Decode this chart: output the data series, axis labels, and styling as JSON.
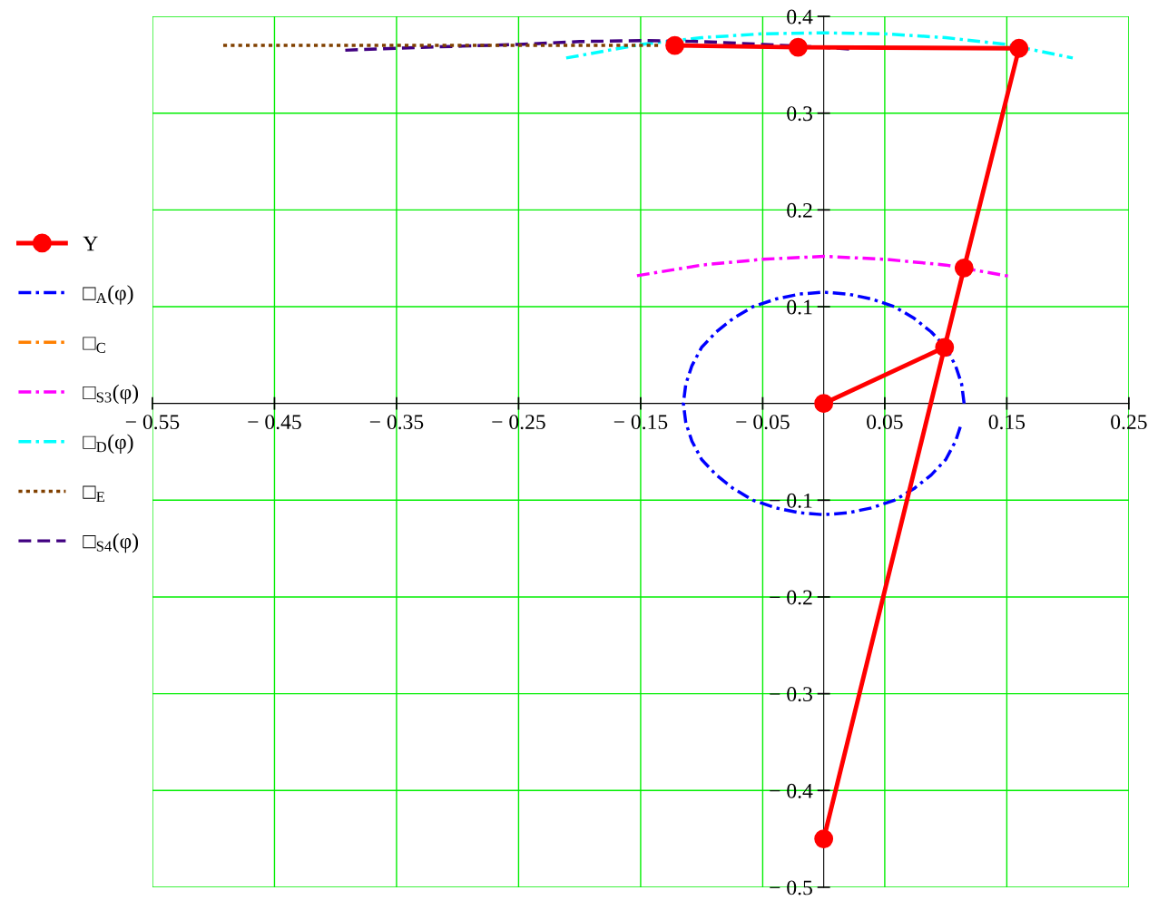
{
  "chart_data": {
    "type": "line",
    "xlim": [
      -0.55,
      0.25
    ],
    "ylim": [
      -0.5,
      0.4
    ],
    "xticks": [
      {
        "value": -0.55,
        "label": "− 0.55"
      },
      {
        "value": -0.45,
        "label": "− 0.45"
      },
      {
        "value": -0.35,
        "label": "− 0.35"
      },
      {
        "value": -0.25,
        "label": "− 0.25"
      },
      {
        "value": -0.15,
        "label": "− 0.15"
      },
      {
        "value": -0.05,
        "label": "− 0.05"
      },
      0.05,
      0.15,
      0.25
    ],
    "yticks": [
      {
        "value": -0.5,
        "label": "− 0.5"
      },
      {
        "value": -0.4,
        "label": "− 0.4"
      },
      {
        "value": -0.3,
        "label": "− 0.3"
      },
      {
        "value": -0.2,
        "label": "− 0.2"
      },
      {
        "value": -0.1,
        "label": "− 0.1"
      },
      0.1,
      0.2,
      0.3,
      0.4
    ],
    "grid": true,
    "legend": "left",
    "series": [
      {
        "name": "Y",
        "color": "#ff0000",
        "marker": "circle",
        "line_style": "solid",
        "x": [
          0,
          0.099,
          0,
          0.115,
          0.16,
          -0.021,
          -0.122
        ],
        "values": [
          0,
          0.058,
          -0.45,
          0.14,
          0.367,
          0.368,
          0.37
        ]
      },
      {
        "name": "□$_{A}$(φ)",
        "color": "#0000ff",
        "marker": "none",
        "line_style": "dashdot",
        "x": [
          0.115,
          0.113,
          0.108,
          0.1,
          0.088,
          0.074,
          0.058,
          0.039,
          0.02,
          0,
          -0.02,
          -0.039,
          -0.058,
          -0.074,
          -0.088,
          -0.1,
          -0.108,
          -0.113,
          -0.115,
          -0.113,
          -0.108,
          -0.1,
          -0.088,
          -0.074,
          -0.058,
          -0.039,
          -0.02,
          0,
          0.02,
          0.039,
          0.058,
          0.074,
          0.088,
          0.1,
          0.108,
          0.113
        ],
        "values": [
          0,
          0.02,
          0.039,
          0.058,
          0.074,
          0.088,
          0.1,
          0.108,
          0.113,
          0.115,
          0.113,
          0.108,
          0.1,
          0.088,
          0.074,
          0.058,
          0.039,
          0.02,
          0,
          -0.02,
          -0.039,
          -0.058,
          -0.074,
          -0.088,
          -0.1,
          -0.108,
          -0.113,
          -0.115,
          -0.113,
          -0.108,
          -0.1,
          -0.088,
          -0.074,
          -0.058,
          -0.039,
          -0.02
        ]
      },
      {
        "name": "□$_{C}$",
        "color": "#ff8000",
        "marker": "none",
        "line_style": "dashdot"
      },
      {
        "name": "□$_{S3}$(φ)",
        "color": "#ff00ff",
        "marker": "none",
        "line_style": "dashdot",
        "x": [
          -0.153,
          -0.1,
          -0.05,
          0,
          0.05,
          0.1,
          0.154
        ],
        "values": [
          0.132,
          0.143,
          0.149,
          0.152,
          0.149,
          0.143,
          0.131
        ]
      },
      {
        "name": "□$_{D}$(φ)",
        "color": "#00ffff",
        "marker": "none",
        "line_style": "dashdot",
        "x": [
          -0.211,
          -0.15,
          -0.1,
          -0.05,
          0,
          0.05,
          0.1,
          0.15,
          0.204
        ],
        "values": [
          0.357,
          0.371,
          0.378,
          0.382,
          0.383,
          0.382,
          0.378,
          0.371,
          0.357
        ]
      },
      {
        "name": "□$_{E}$",
        "color": "#804000",
        "marker": "none",
        "line_style": "dotted",
        "x": [
          -0.492,
          -0.3,
          -0.135
        ],
        "values": [
          0.37,
          0.37,
          0.37
        ]
      },
      {
        "name": "□$_{S4}$(φ)",
        "color": "#400080",
        "marker": "none",
        "line_style": "dashed",
        "x": [
          -0.392,
          -0.33,
          -0.25,
          -0.2,
          -0.15,
          -0.1,
          -0.05,
          0,
          0.024
        ],
        "values": [
          0.365,
          0.368,
          0.371,
          0.374,
          0.375,
          0.374,
          0.371,
          0.368,
          0.366
        ]
      }
    ]
  }
}
